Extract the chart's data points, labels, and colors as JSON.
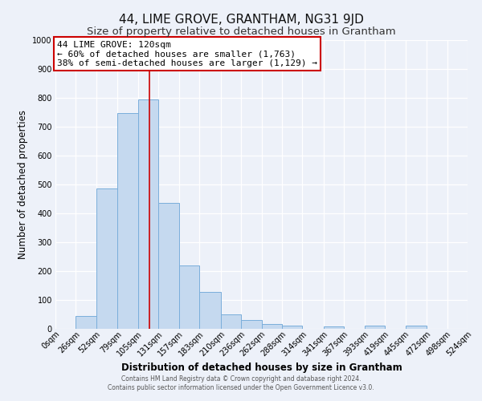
{
  "title": "44, LIME GROVE, GRANTHAM, NG31 9JD",
  "subtitle": "Size of property relative to detached houses in Grantham",
  "xlabel": "Distribution of detached houses by size in Grantham",
  "ylabel": "Number of detached properties",
  "bin_edges": [
    0,
    26,
    52,
    79,
    105,
    131,
    157,
    183,
    210,
    236,
    262,
    288,
    314,
    341,
    367,
    393,
    419,
    445,
    472,
    498,
    524
  ],
  "bar_heights": [
    0,
    45,
    485,
    748,
    795,
    435,
    220,
    128,
    50,
    30,
    17,
    10,
    0,
    8,
    0,
    10,
    0,
    10,
    0,
    0
  ],
  "bar_color": "#c5d9ef",
  "bar_edge_color": "#7aaedb",
  "bar_edge_width": 0.7,
  "red_line_x": 120,
  "red_line_color": "#cc0000",
  "annotation_title": "44 LIME GROVE: 120sqm",
  "annotation_line1": "← 60% of detached houses are smaller (1,763)",
  "annotation_line2": "38% of semi-detached houses are larger (1,129) →",
  "annotation_box_facecolor": "#ffffff",
  "annotation_box_edgecolor": "#cc0000",
  "ylim": [
    0,
    1000
  ],
  "yticks": [
    0,
    100,
    200,
    300,
    400,
    500,
    600,
    700,
    800,
    900,
    1000
  ],
  "xtick_labels": [
    "0sqm",
    "26sqm",
    "52sqm",
    "79sqm",
    "105sqm",
    "131sqm",
    "157sqm",
    "183sqm",
    "210sqm",
    "236sqm",
    "262sqm",
    "288sqm",
    "314sqm",
    "341sqm",
    "367sqm",
    "393sqm",
    "419sqm",
    "445sqm",
    "472sqm",
    "498sqm",
    "524sqm"
  ],
  "bg_color": "#edf1f9",
  "grid_color": "#ffffff",
  "title_fontsize": 11,
  "subtitle_fontsize": 9.5,
  "axis_label_fontsize": 8.5,
  "annot_fontsize": 8,
  "tick_fontsize": 7,
  "footer_line1": "Contains HM Land Registry data © Crown copyright and database right 2024.",
  "footer_line2": "Contains public sector information licensed under the Open Government Licence v3.0."
}
